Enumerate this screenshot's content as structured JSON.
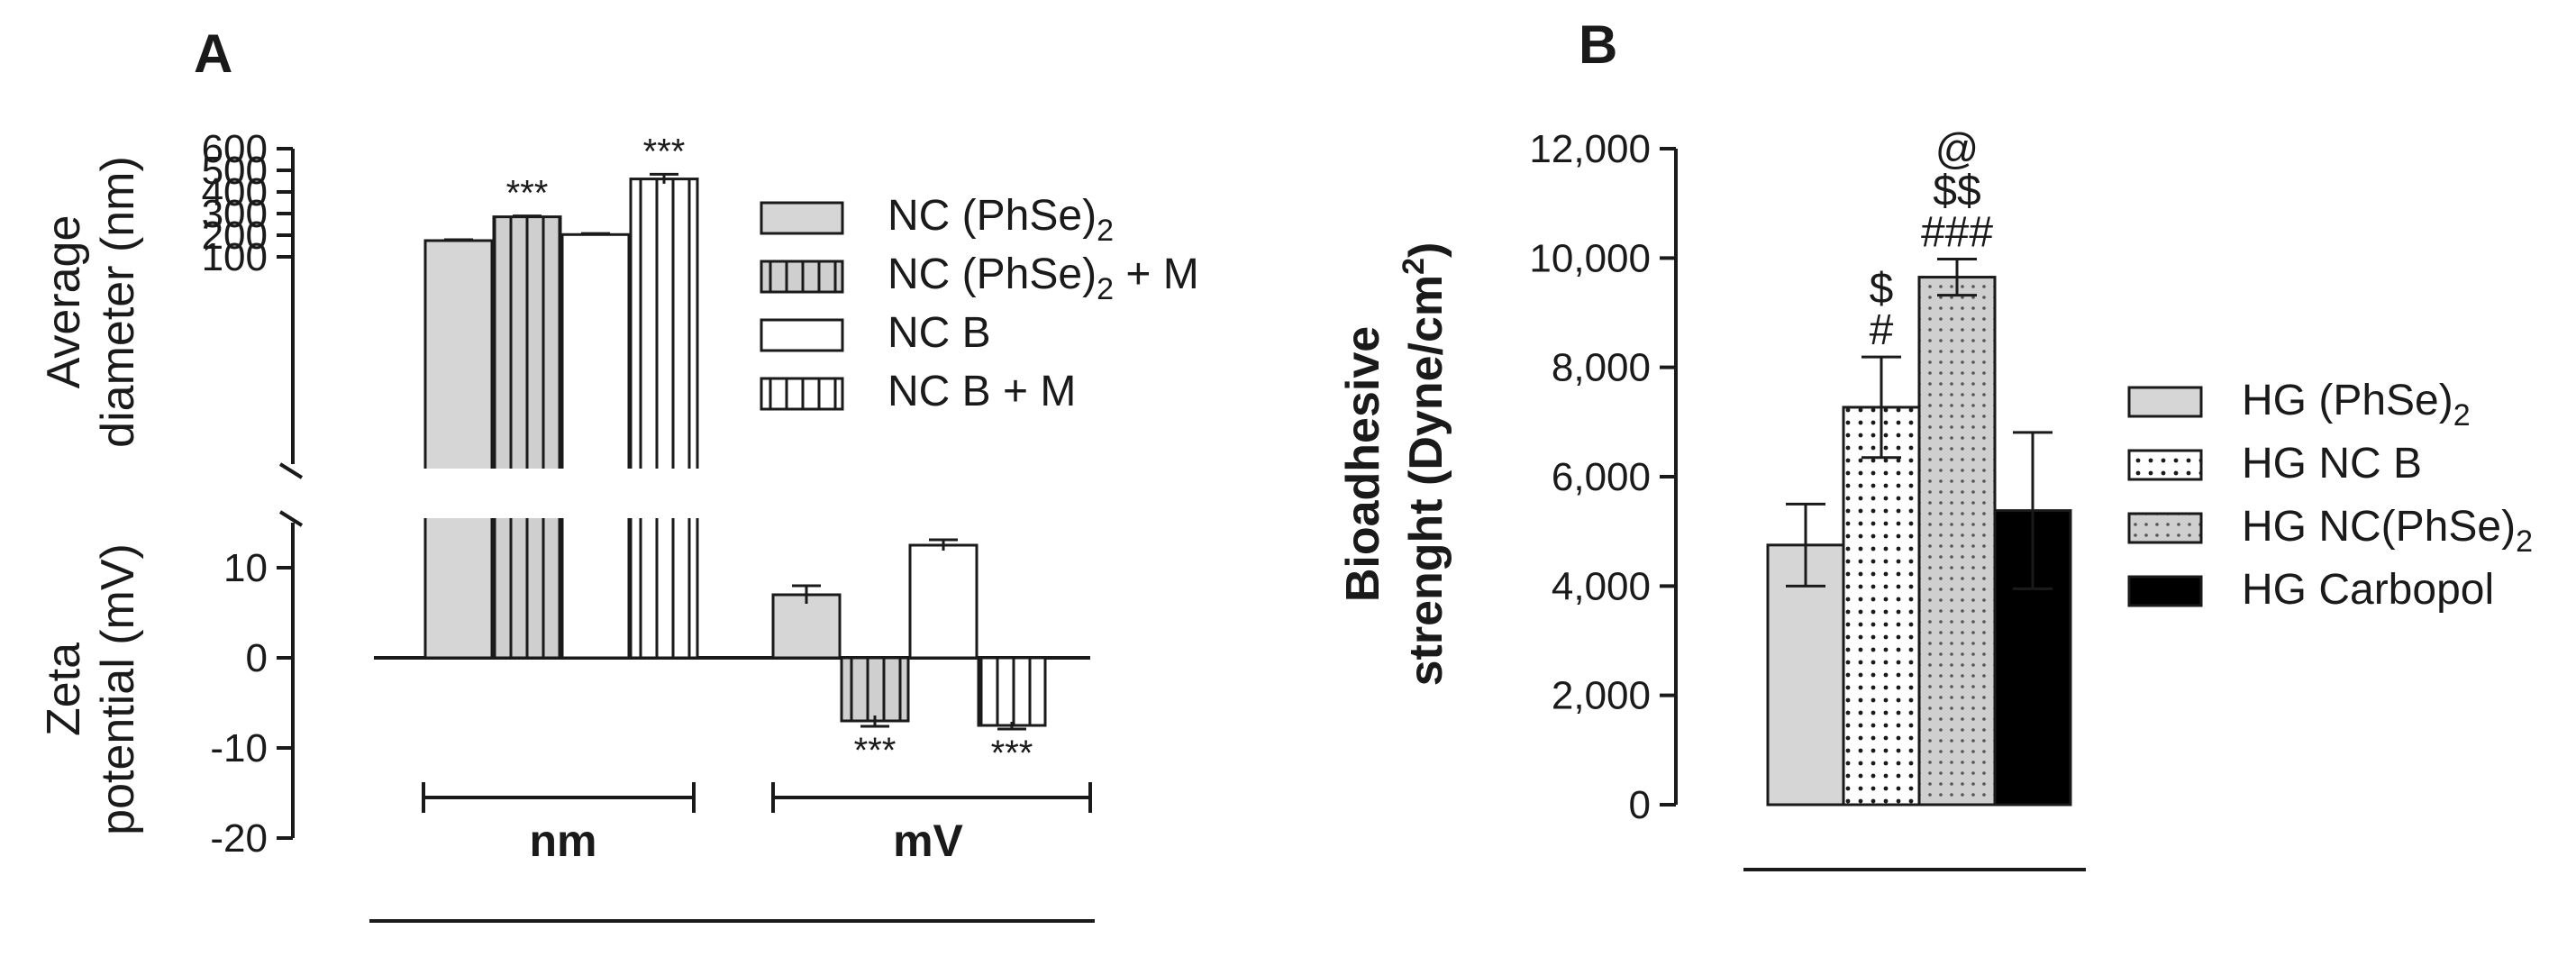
{
  "colors": {
    "light_gray": "#d6d6d6",
    "dotted_gray": "#cfcfcf",
    "white": "#ffffff",
    "black": "#000000",
    "axis": "#1a1a1a"
  },
  "chart_data": [
    {
      "panel": "A",
      "type": "bar",
      "title": "",
      "groups": [
        "nm",
        "mV"
      ],
      "legend": [
        "NC (PhSe)",
        "NC (PhSe)",
        "NC B",
        "NC B + M"
      ],
      "legend_subscripts": [
        "2",
        "2",
        "",
        ""
      ],
      "legend_suffix": [
        "",
        " + M",
        "",
        ""
      ],
      "legend_patterns": [
        "solid-gray",
        "gray-vertical-lines",
        "white",
        "white-vertical-lines"
      ],
      "legend_position": "right",
      "subplots": [
        {
          "name": "diameter",
          "ylabel": [
            "Average",
            "diameter (nm)"
          ],
          "ylim": [
            100,
            600
          ],
          "yticks": [
            "600",
            "500",
            "400",
            "300",
            "200",
            "100"
          ],
          "ytick_values": [
            600,
            500,
            400,
            300,
            200,
            100
          ],
          "series": [
            {
              "group": "nm",
              "legend_index": 0,
              "value": 175,
              "error": 4,
              "sig": ""
            },
            {
              "group": "nm",
              "legend_index": 1,
              "value": 285,
              "error": 4,
              "sig": "***"
            },
            {
              "group": "nm",
              "legend_index": 2,
              "value": 203,
              "error": 5,
              "sig": ""
            },
            {
              "group": "nm",
              "legend_index": 3,
              "value": 460,
              "error": 22,
              "sig": "***"
            }
          ]
        },
        {
          "name": "zeta",
          "ylabel": [
            "Zeta",
            "potential (mV)"
          ],
          "ylim": [
            -20,
            15
          ],
          "yticks": [
            "10",
            "0",
            "-10",
            "-20"
          ],
          "ytick_values": [
            10,
            0,
            -10,
            -20
          ],
          "series": [
            {
              "group": "mV",
              "legend_index": 0,
              "value": 7,
              "error": 1.0,
              "sig": ""
            },
            {
              "group": "mV",
              "legend_index": 1,
              "value": -7,
              "error": 0.6,
              "sig": "***"
            },
            {
              "group": "mV",
              "legend_index": 2,
              "value": 12.5,
              "error": 0.6,
              "sig": ""
            },
            {
              "group": "mV",
              "legend_index": 3,
              "value": -7.5,
              "error": 0.4,
              "sig": "***"
            }
          ]
        }
      ]
    },
    {
      "panel": "B",
      "type": "bar",
      "title": "",
      "ylabel": [
        "Bioadhesive",
        "strenght (Dyne/cm",
        "2",
        ")"
      ],
      "ylim": [
        0,
        12000
      ],
      "yticks": [
        "12,000",
        "10,000",
        "8,000",
        "6,000",
        "4,000",
        "2,000",
        "0"
      ],
      "ytick_values": [
        12000,
        10000,
        8000,
        6000,
        4000,
        2000,
        0
      ],
      "categories": [
        "HG (PhSe)2",
        "HG NC B",
        "HG NC(PhSe)2",
        "HG Carbopol"
      ],
      "legend": [
        "HG (PhSe)",
        "HG NC B",
        "HG NC(PhSe)",
        "HG Carbopol"
      ],
      "legend_subscripts": [
        "2",
        "",
        "2",
        ""
      ],
      "legend_position": "right",
      "values": [
        4750,
        7270,
        9650,
        5380
      ],
      "errors": [
        750,
        920,
        330,
        1430
      ],
      "annotations": [
        [],
        [
          "$",
          "#"
        ],
        [
          "@",
          "$$",
          "###"
        ],
        []
      ]
    }
  ]
}
